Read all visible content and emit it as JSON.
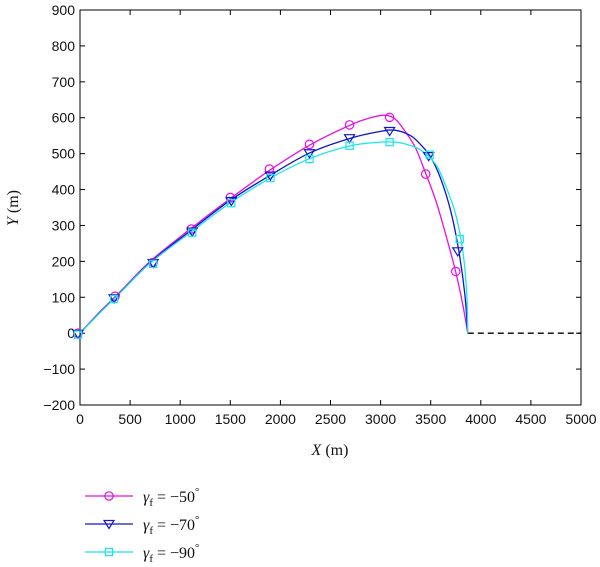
{
  "chart_data": {
    "type": "line",
    "xlabel": {
      "var": "X",
      "unit": " (m)"
    },
    "ylabel": {
      "var": "Y",
      "unit": " (m)"
    },
    "xlim": [
      0,
      5000
    ],
    "ylim": [
      -200,
      900
    ],
    "xticks": [
      0,
      500,
      1000,
      1500,
      2000,
      2500,
      3000,
      3500,
      4000,
      4500,
      5000
    ],
    "yticks": [
      -200,
      -100,
      0,
      100,
      200,
      300,
      400,
      500,
      600,
      700,
      800,
      900
    ],
    "grid": false,
    "legend_position": "below plot, left",
    "reference_line": {
      "style": "dashed",
      "color": "#000000",
      "x": [
        3870,
        5000
      ],
      "y": [
        0,
        0
      ]
    },
    "series": [
      {
        "name": "γf = −50°",
        "label": {
          "sym": "γ",
          "sub": "f",
          "rel": " = −50",
          "deg": "°"
        },
        "color": "#e60fe6",
        "marker": "circle",
        "x": [
          0,
          200,
          400,
          700,
          1100,
          1500,
          1900,
          2300,
          2700,
          2900,
          3050,
          3150,
          3250,
          3350,
          3450,
          3550,
          3650,
          3750,
          3820,
          3870
        ],
        "y": [
          0,
          60,
          115,
          200,
          290,
          375,
          455,
          525,
          580,
          600,
          607,
          595,
          560,
          515,
          445,
          370,
          275,
          170,
          80,
          0
        ],
        "markers_x": [
          -20,
          350,
          730,
          1110,
          1500,
          1890,
          2290,
          2690,
          3090,
          3450,
          3750
        ],
        "markers_y": [
          0,
          103,
          197,
          290,
          378,
          457,
          526,
          580,
          601,
          443,
          172
        ]
      },
      {
        "name": "γf = −70°",
        "label": {
          "sym": "γ",
          "sub": "f",
          "rel": " = −70",
          "deg": "°"
        },
        "color": "#1414c8",
        "marker": "triangle-down",
        "x": [
          0,
          200,
          400,
          700,
          1100,
          1500,
          1900,
          2300,
          2700,
          3000,
          3150,
          3300,
          3400,
          3500,
          3600,
          3700,
          3780,
          3840,
          3870
        ],
        "y": [
          0,
          58,
          113,
          197,
          285,
          370,
          440,
          503,
          543,
          562,
          565,
          550,
          525,
          490,
          430,
          340,
          230,
          110,
          0
        ],
        "markers_x": [
          -20,
          340,
          730,
          1120,
          1510,
          1900,
          2290,
          2690,
          3090,
          3480,
          3770
        ],
        "markers_y": [
          -2,
          97,
          195,
          283,
          368,
          439,
          501,
          543,
          563,
          493,
          228
        ]
      },
      {
        "name": "γf = −90°",
        "label": {
          "sym": "γ",
          "sub": "f",
          "rel": " = −90",
          "deg": "°"
        },
        "color": "#19e6e6",
        "marker": "square",
        "x": [
          0,
          200,
          400,
          700,
          1100,
          1500,
          1900,
          2300,
          2700,
          3000,
          3200,
          3400,
          3550,
          3650,
          3750,
          3820,
          3860,
          3870
        ],
        "y": [
          0,
          57,
          112,
          195,
          280,
          363,
          432,
          487,
          522,
          532,
          530,
          510,
          470,
          410,
          330,
          230,
          110,
          0
        ],
        "markers_x": [
          -20,
          340,
          730,
          1120,
          1510,
          1900,
          2290,
          2690,
          3090,
          3490,
          3790
        ],
        "markers_y": [
          -4,
          95,
          193,
          280,
          362,
          432,
          485,
          522,
          532,
          497,
          262
        ]
      }
    ]
  }
}
